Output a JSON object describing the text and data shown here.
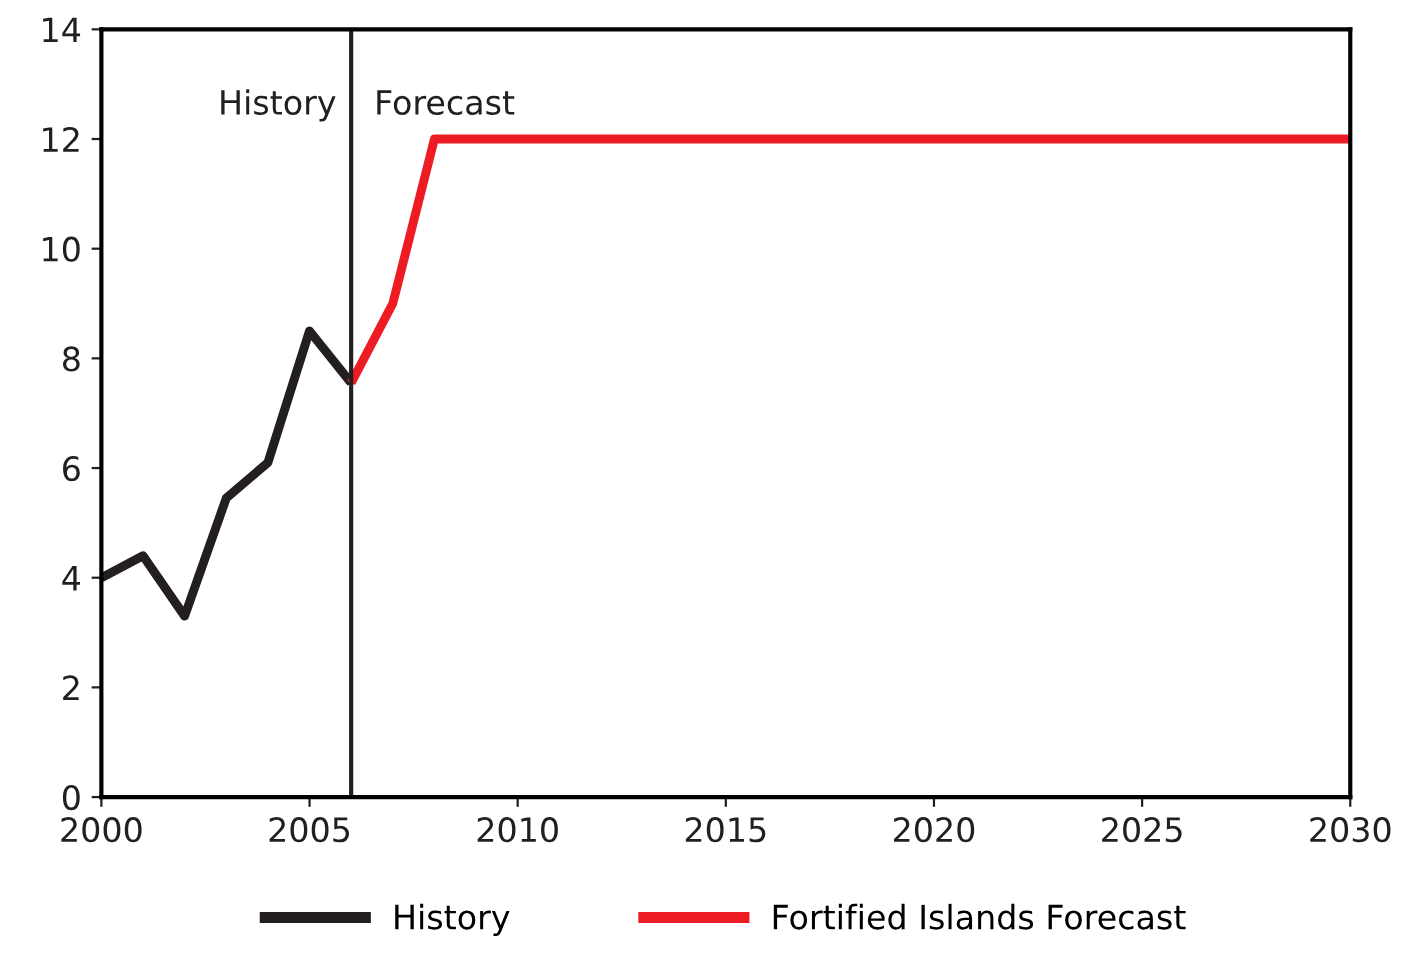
{
  "chart_data": {
    "type": "line",
    "series": [
      {
        "name": "History",
        "color": "#231f20",
        "x": [
          2000,
          2001,
          2002,
          2003,
          2004,
          2005,
          2006
        ],
        "values": [
          4.0,
          4.4,
          3.3,
          5.45,
          6.1,
          8.5,
          7.55
        ]
      },
      {
        "name": "Fortified Islands Forecast",
        "color": "#ed1c24",
        "x": [
          2006,
          2007,
          2008,
          2030
        ],
        "values": [
          7.55,
          9.0,
          12.0,
          12.0
        ]
      }
    ],
    "xlim": [
      2000,
      2030
    ],
    "xticks": [
      2000,
      2005,
      2010,
      2015,
      2020,
      2025,
      2030
    ],
    "ylim": [
      0,
      14
    ],
    "yticks": [
      0,
      2,
      4,
      6,
      8,
      10,
      12,
      14
    ],
    "ref_lines": [
      {
        "axis": "x",
        "value": 2006,
        "color": "#231f20"
      }
    ],
    "annotations": [
      "History",
      "Forecast"
    ],
    "legend": "bottom",
    "grid": false
  }
}
